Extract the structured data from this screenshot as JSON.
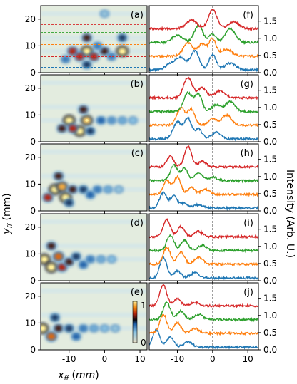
{
  "chart_data": [
    {
      "type": "heatmap",
      "description_panels": [
        "(a)",
        "(b)",
        "(c)",
        "(d)",
        "(e)"
      ],
      "xlabel": "x_ff (mm)",
      "ylabel": "y_ff (mm)",
      "xticks": [
        "-10",
        "0",
        "10"
      ],
      "yticks": [
        "0",
        "10",
        "20"
      ],
      "xlim": [
        -18,
        12
      ],
      "ylim": [
        0,
        25
      ],
      "colorbar": {
        "min": "0",
        "max": "1"
      },
      "panels": [
        {
          "label": "(a)",
          "spots": [
            [
              -5,
              8,
              1.0
            ],
            [
              5,
              8,
              1.0
            ],
            [
              -9,
              8,
              0.7
            ],
            [
              -7,
              6,
              0.7
            ],
            [
              -3,
              6,
              0.7
            ],
            [
              0,
              8,
              0.6
            ],
            [
              -5,
              13,
              0.6
            ],
            [
              5,
              13,
              0.5
            ],
            [
              -5,
              3,
              0.5
            ],
            [
              -11,
              5,
              0.4
            ],
            [
              -2,
              10,
              0.4
            ],
            [
              2,
              6,
              0.4
            ],
            [
              0,
              22,
              0.2
            ]
          ]
        },
        {
          "label": "(b)",
          "spots": [
            [
              -10,
              8,
              1.0
            ],
            [
              -7,
              4,
              1.0
            ],
            [
              -5,
              8,
              0.95
            ],
            [
              -9,
              5,
              0.7
            ],
            [
              -12,
              5,
              0.6
            ],
            [
              -6,
              12,
              0.6
            ],
            [
              -1,
              8,
              0.45
            ],
            [
              2,
              8,
              0.35
            ],
            [
              -4,
              4,
              0.5
            ],
            [
              5,
              8,
              0.3
            ],
            [
              8,
              8,
              0.25
            ]
          ]
        },
        {
          "label": "(c)",
          "spots": [
            [
              -14,
              8,
              1.0
            ],
            [
              -11,
              5,
              1.0
            ],
            [
              -12,
              9,
              0.9
            ],
            [
              -16,
              5,
              0.7
            ],
            [
              -13,
              13,
              0.6
            ],
            [
              -9,
              8,
              0.6
            ],
            [
              -6,
              8,
              0.5
            ],
            [
              -4,
              6,
              0.45
            ],
            [
              -2,
              8,
              0.4
            ],
            [
              1,
              8,
              0.3
            ],
            [
              -10,
              3,
              0.5
            ],
            [
              4,
              8,
              0.2
            ]
          ]
        },
        {
          "label": "(d)",
          "spots": [
            [
              -17,
              8,
              1.0
            ],
            [
              -15,
              5,
              1.0
            ],
            [
              -13,
              9,
              0.8
            ],
            [
              -12,
              5,
              0.7
            ],
            [
              -15,
              13,
              0.6
            ],
            [
              -10,
              7,
              0.6
            ],
            [
              -8,
              9,
              0.5
            ],
            [
              -6,
              6,
              0.45
            ],
            [
              -4,
              8,
              0.4
            ],
            [
              -1,
              8,
              0.3
            ],
            [
              2,
              8,
              0.25
            ]
          ]
        },
        {
          "label": "(e)",
          "spots": [
            [
              -17.5,
              8,
              1.0
            ],
            [
              -15,
              5,
              0.8
            ],
            [
              -13,
              8,
              0.6
            ],
            [
              -14,
              12,
              0.5
            ],
            [
              -10,
              8,
              0.5
            ],
            [
              -8,
              5,
              0.45
            ],
            [
              -6,
              8,
              0.4
            ],
            [
              -3,
              8,
              0.3
            ],
            [
              0,
              8,
              0.25
            ],
            [
              3,
              8,
              0.2
            ]
          ]
        }
      ],
      "guide_lines": [
        {
          "panel": "(a)",
          "color": "#d62728",
          "y": 18
        },
        {
          "panel": "(a)",
          "color": "#2ca02c",
          "y": 15
        },
        {
          "panel": "(a)",
          "color": "#ff7f0e",
          "y": 10.5
        },
        {
          "panel": "(a)",
          "color": "#d62728",
          "y": 6
        },
        {
          "panel": "(a)",
          "color": "#1f77b4",
          "y": 2
        }
      ]
    },
    {
      "type": "line",
      "description_panels": [
        "(f)",
        "(g)",
        "(h)",
        "(i)",
        "(j)"
      ],
      "xticks": [
        "-10",
        "0",
        "10"
      ],
      "yticks": [
        "0.0",
        "0.5",
        "1.0",
        "1.5"
      ],
      "xlim": [
        -18,
        13
      ],
      "ylim": [
        0,
        1.95
      ],
      "ylabel": "Intensity (Arb. U.)",
      "vline_x": 0,
      "series_colors": [
        "#1f77b4",
        "#ff7f0e",
        "#2ca02c",
        "#d62728"
      ],
      "series_offsets": [
        0,
        0.4,
        0.8,
        1.2
      ],
      "panels": [
        {
          "label": "(f)",
          "peaks": [
            [
              [
                -9,
                0.35,
                1.5
              ],
              [
                -5,
                0.55,
                1.2
              ],
              [
                0,
                0.45,
                1.0
              ],
              [
                -12,
                0.15,
                1.5
              ],
              [
                5,
                0.2,
                1.5
              ]
            ],
            [
              [
                -7,
                0.4,
                1.3
              ],
              [
                -3,
                0.35,
                1.2
              ],
              [
                0,
                0.5,
                1.0
              ],
              [
                4,
                0.2,
                1.5
              ]
            ],
            [
              [
                -10,
                0.2,
                1.5
              ],
              [
                -4,
                0.5,
                1.2
              ],
              [
                5,
                0.4,
                1.4
              ],
              [
                0,
                0.25,
                1.0
              ]
            ],
            [
              [
                0,
                0.55,
                1.2
              ],
              [
                -6,
                0.25,
                1.5
              ],
              [
                6,
                0.2,
                1.5
              ]
            ]
          ]
        },
        {
          "label": "(g)",
          "peaks": [
            [
              [
                -10,
                0.5,
                1.2
              ],
              [
                -7,
                0.6,
                1.0
              ],
              [
                -4,
                0.3,
                1.0
              ],
              [
                1,
                0.2,
                1.3
              ]
            ],
            [
              [
                -9,
                0.5,
                1.2
              ],
              [
                -6,
                0.45,
                1.0
              ],
              [
                0,
                0.2,
                1.2
              ],
              [
                4,
                0.3,
                1.3
              ]
            ],
            [
              [
                -7,
                0.55,
                1.2
              ],
              [
                -4,
                0.5,
                1.0
              ],
              [
                1,
                0.2,
                1.2
              ],
              [
                5,
                0.3,
                1.3
              ]
            ],
            [
              [
                -7,
                0.6,
                1.2
              ],
              [
                -3,
                0.3,
                1.2
              ],
              [
                2,
                0.2,
                1.4
              ]
            ]
          ]
        },
        {
          "label": "(h)",
          "peaks": [
            [
              [
                -14,
                0.45,
                1.0
              ],
              [
                -11,
                0.35,
                1.0
              ],
              [
                -8,
                0.15,
                1.0
              ],
              [
                -4,
                0.1,
                1.2
              ]
            ],
            [
              [
                -13,
                0.4,
                1.0
              ],
              [
                -10,
                0.5,
                1.0
              ],
              [
                -6,
                0.2,
                1.0
              ],
              [
                -2,
                0.15,
                1.2
              ]
            ],
            [
              [
                -11,
                0.45,
                1.0
              ],
              [
                -8,
                0.35,
                1.0
              ],
              [
                -4,
                0.25,
                1.0
              ],
              [
                0,
                0.1,
                1.2
              ]
            ],
            [
              [
                -12,
                0.3,
                1.0
              ],
              [
                -7,
                0.6,
                1.0
              ],
              [
                -3,
                0.15,
                1.2
              ]
            ]
          ]
        },
        {
          "label": "(i)",
          "peaks": [
            [
              [
                -14,
                0.6,
                1.0
              ],
              [
                -10,
                0.2,
                1.0
              ],
              [
                -5,
                0.15,
                1.2
              ]
            ],
            [
              [
                -13,
                0.5,
                1.0
              ],
              [
                -9,
                0.35,
                1.0
              ],
              [
                -4,
                0.2,
                1.2
              ]
            ],
            [
              [
                -12,
                0.45,
                1.0
              ],
              [
                -8,
                0.3,
                1.0
              ],
              [
                -3,
                0.15,
                1.2
              ]
            ],
            [
              [
                -13,
                0.5,
                1.0
              ],
              [
                -9,
                0.3,
                1.0
              ],
              [
                -4,
                0.15,
                1.2
              ]
            ]
          ]
        },
        {
          "label": "(j)",
          "peaks": [
            [
              [
                -16,
                0.5,
                1.0
              ],
              [
                -12,
                0.3,
                1.0
              ],
              [
                -7,
                0.15,
                1.2
              ]
            ],
            [
              [
                -14,
                0.55,
                1.0
              ],
              [
                -10,
                0.3,
                1.0
              ],
              [
                -5,
                0.15,
                1.2
              ]
            ],
            [
              [
                -13,
                0.5,
                1.0
              ],
              [
                -9,
                0.25,
                1.0
              ],
              [
                -4,
                0.15,
                1.2
              ]
            ],
            [
              [
                -14,
                0.6,
                1.0
              ],
              [
                -10,
                0.2,
                1.0
              ],
              [
                -5,
                0.1,
                1.2
              ]
            ]
          ]
        }
      ]
    }
  ]
}
